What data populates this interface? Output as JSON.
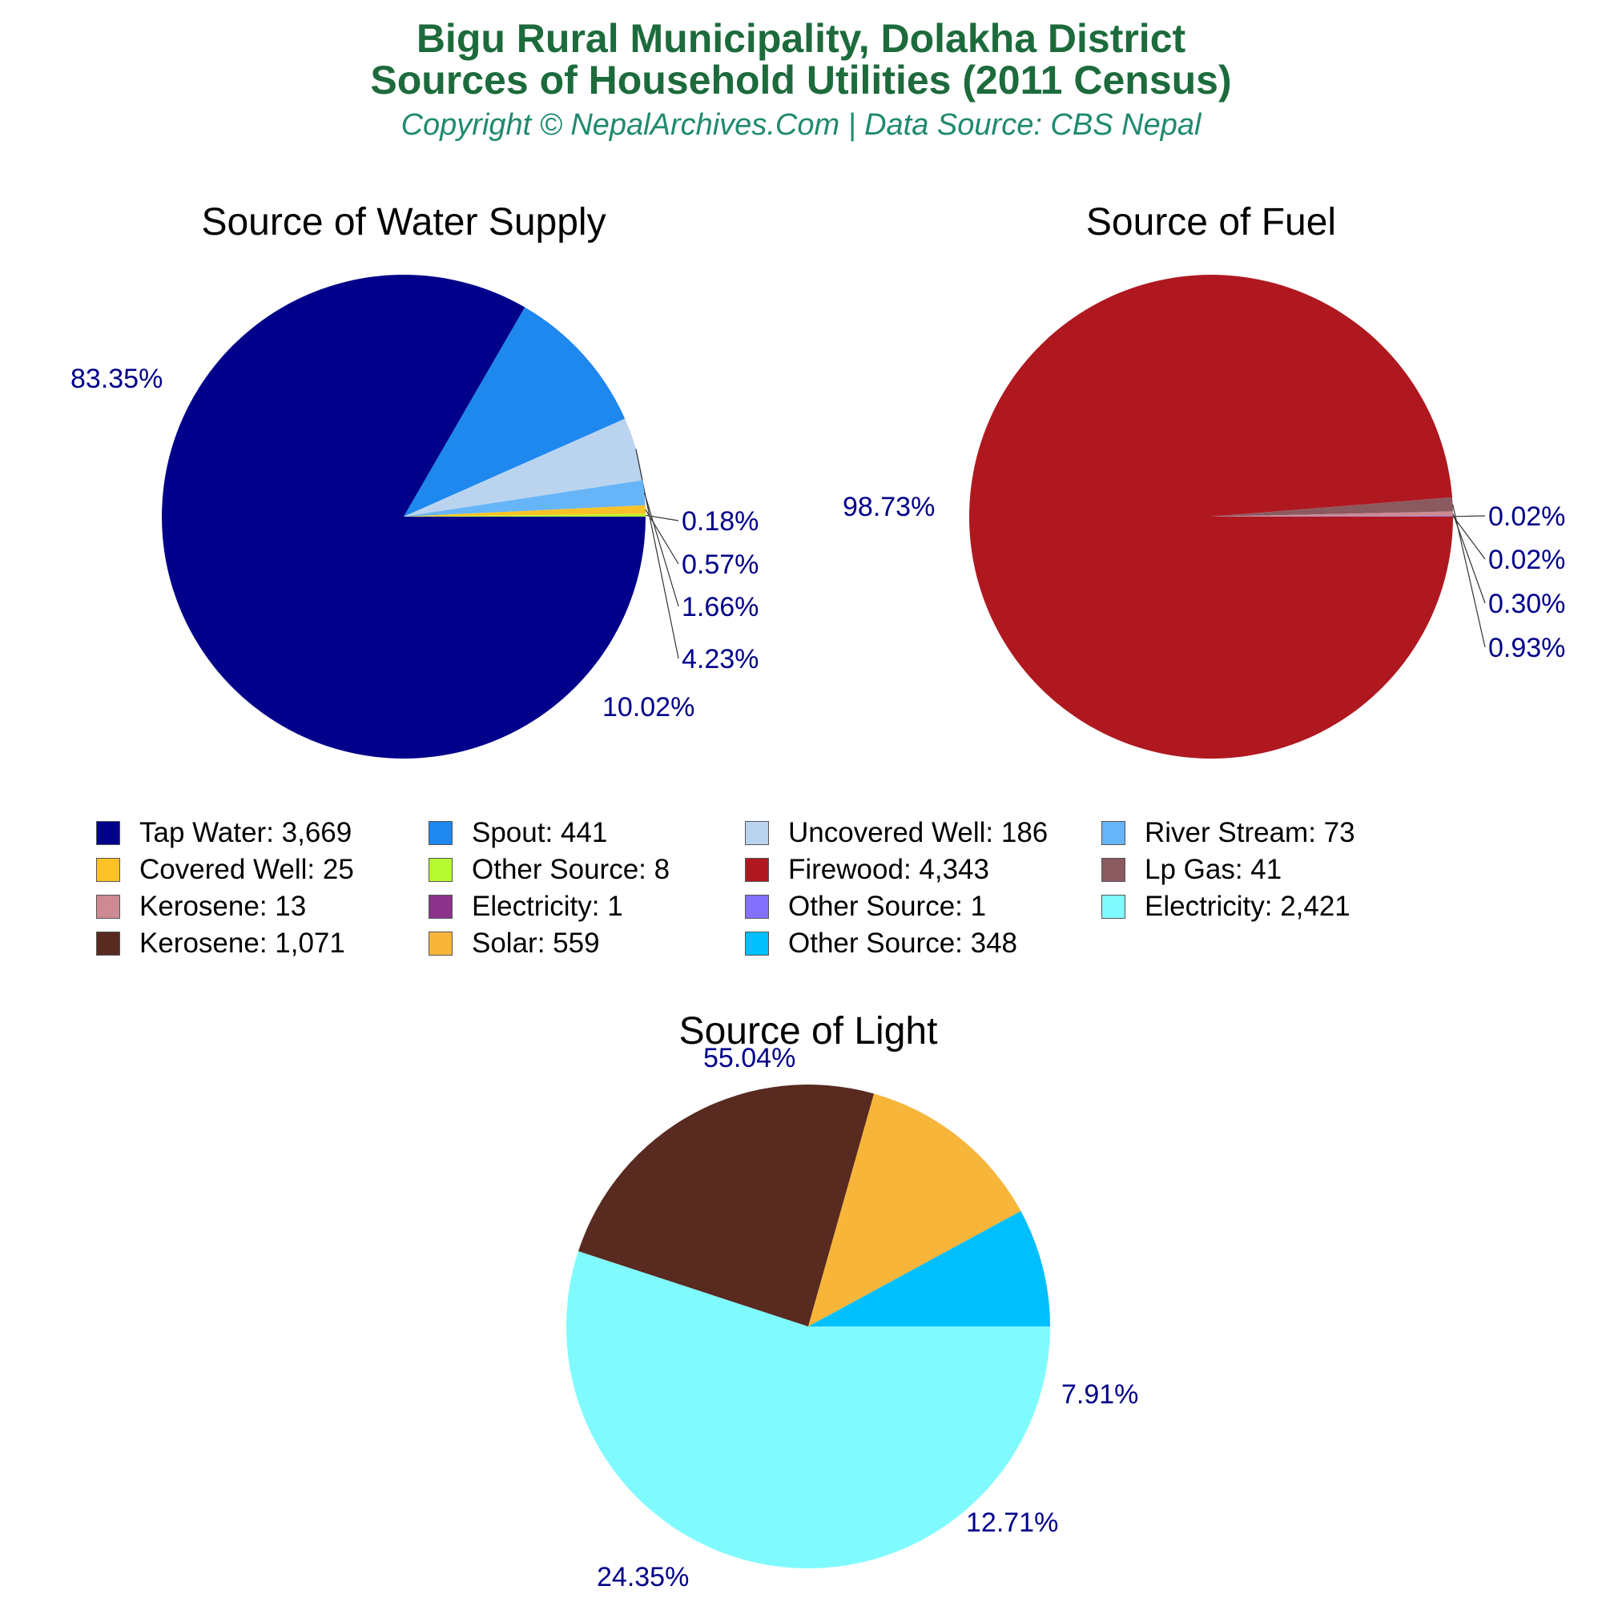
{
  "title_line1": "Bigu Rural Municipality, Dolakha District",
  "title_line2": "Sources of Household Utilities (2011 Census)",
  "subtitle": "Copyright © NepalArchives.Com | Data Source: CBS Nepal",
  "chart_data": [
    {
      "type": "pie",
      "title": "Source of Water Supply",
      "slices": [
        {
          "label": "Tap Water",
          "value": 3669,
          "percent": "83.35%",
          "color": "#00008b"
        },
        {
          "label": "Spout",
          "value": 441,
          "percent": "10.02%",
          "color": "#1e88ee"
        },
        {
          "label": "Uncovered Well",
          "value": 186,
          "percent": "4.23%",
          "color": "#bad4f0"
        },
        {
          "label": "River Stream",
          "value": 73,
          "percent": "1.66%",
          "color": "#66b5f8"
        },
        {
          "label": "Covered Well",
          "value": 25,
          "percent": "0.57%",
          "color": "#fcc227"
        },
        {
          "label": "Other Source",
          "value": 8,
          "percent": "0.18%",
          "color": "#b8fa32"
        }
      ]
    },
    {
      "type": "pie",
      "title": "Source of Fuel",
      "slices": [
        {
          "label": "Firewood",
          "value": 4343,
          "percent": "98.73%",
          "color": "#b01820"
        },
        {
          "label": "Lp Gas",
          "value": 41,
          "percent": "0.93%",
          "color": "#8b5a60"
        },
        {
          "label": "Kerosene",
          "value": 13,
          "percent": "0.30%",
          "color": "#cd8a93"
        },
        {
          "label": "Electricity",
          "value": 1,
          "percent": "0.02%",
          "color": "#8b338b"
        },
        {
          "label": "Other Source",
          "value": 1,
          "percent": "0.02%",
          "color": "#8470ff"
        }
      ]
    },
    {
      "type": "pie",
      "title": "Source of Light",
      "slices": [
        {
          "label": "Electricity",
          "value": 2421,
          "percent": "55.04%",
          "color": "#7ffbff"
        },
        {
          "label": "Kerosene",
          "value": 1071,
          "percent": "24.35%",
          "color": "#582a20"
        },
        {
          "label": "Solar",
          "value": 559,
          "percent": "12.71%",
          "color": "#f7b53a"
        },
        {
          "label": "Other Source",
          "value": 348,
          "percent": "7.91%",
          "color": "#00bfff"
        }
      ]
    }
  ],
  "legend": [
    {
      "text": "Tap Water: 3,669",
      "color": "#00008b"
    },
    {
      "text": "Spout: 441",
      "color": "#1e88ee"
    },
    {
      "text": "Uncovered Well: 186",
      "color": "#bad4f0"
    },
    {
      "text": "River Stream: 73",
      "color": "#66b5f8"
    },
    {
      "text": "Covered Well: 25",
      "color": "#fcc227"
    },
    {
      "text": "Other Source: 8",
      "color": "#b8fa32"
    },
    {
      "text": "Firewood: 4,343",
      "color": "#b01820"
    },
    {
      "text": "Lp Gas: 41",
      "color": "#8b5a60"
    },
    {
      "text": "Kerosene: 13",
      "color": "#cd8a93"
    },
    {
      "text": "Electricity: 1",
      "color": "#8b338b"
    },
    {
      "text": "Other Source: 1",
      "color": "#8470ff"
    },
    {
      "text": "Electricity: 2,421",
      "color": "#7ffbff"
    },
    {
      "text": "Kerosene: 1,071",
      "color": "#582a20"
    },
    {
      "text": "Solar: 559",
      "color": "#f7b53a"
    },
    {
      "text": "Other Source: 348",
      "color": "#00bfff"
    }
  ]
}
